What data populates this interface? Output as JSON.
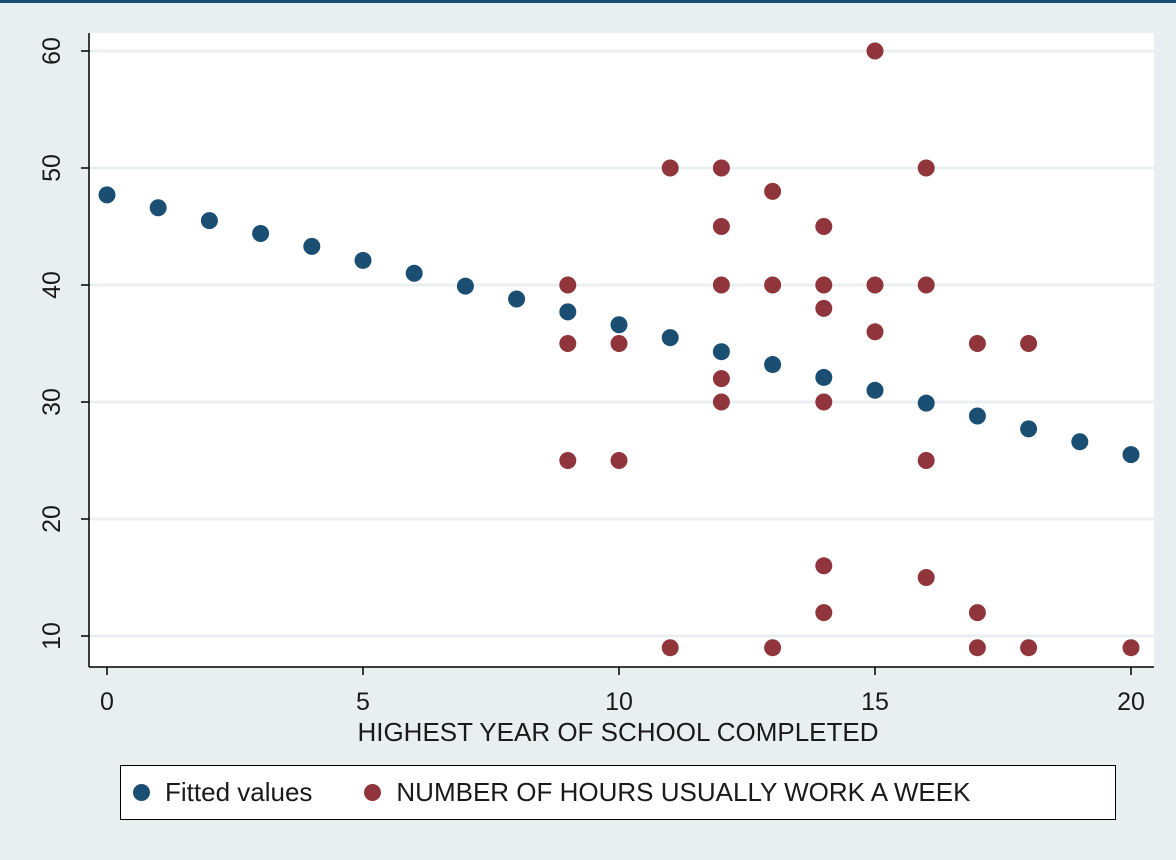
{
  "colors": {
    "background": "#e9eef1",
    "plot_background": "#ffffff",
    "top_rule": "#1a4e72",
    "fitted": "#1a4e72",
    "observed": "#90353b"
  },
  "chart_data": {
    "type": "scatter",
    "xlabel": "HIGHEST YEAR OF SCHOOL COMPLETED",
    "ylabel": "",
    "xlim": [
      0,
      20
    ],
    "ylim": [
      9,
      60
    ],
    "xticks": [
      "0",
      "5",
      "10",
      "15",
      "20"
    ],
    "yticks": [
      "10",
      "20",
      "30",
      "40",
      "50",
      "60"
    ],
    "grid": "horizontal",
    "legend_position": "bottom",
    "series": [
      {
        "name": "Fitted values",
        "color": "#1a4e72",
        "points": [
          [
            0,
            47.7
          ],
          [
            1,
            46.6
          ],
          [
            2,
            45.5
          ],
          [
            3,
            44.4
          ],
          [
            4,
            43.3
          ],
          [
            5,
            42.1
          ],
          [
            6,
            41.0
          ],
          [
            7,
            39.9
          ],
          [
            8,
            38.8
          ],
          [
            9,
            37.7
          ],
          [
            10,
            36.6
          ],
          [
            11,
            35.5
          ],
          [
            12,
            34.3
          ],
          [
            13,
            33.2
          ],
          [
            14,
            32.1
          ],
          [
            15,
            31.0
          ],
          [
            16,
            29.9
          ],
          [
            17,
            28.8
          ],
          [
            18,
            27.7
          ],
          [
            19,
            26.6
          ],
          [
            20,
            25.5
          ]
        ]
      },
      {
        "name": "NUMBER OF HOURS USUALLY WORK A WEEK",
        "color": "#90353b",
        "points": [
          [
            9,
            40
          ],
          [
            9,
            35
          ],
          [
            9,
            25
          ],
          [
            10,
            35
          ],
          [
            10,
            25
          ],
          [
            11,
            50
          ],
          [
            11,
            9
          ],
          [
            12,
            50
          ],
          [
            12,
            45
          ],
          [
            12,
            40
          ],
          [
            12,
            32
          ],
          [
            12,
            30
          ],
          [
            13,
            48
          ],
          [
            13,
            40
          ],
          [
            13,
            9
          ],
          [
            14,
            45
          ],
          [
            14,
            40
          ],
          [
            14,
            38
          ],
          [
            14,
            30
          ],
          [
            14,
            16
          ],
          [
            14,
            12
          ],
          [
            15,
            60
          ],
          [
            15,
            40
          ],
          [
            15,
            36
          ],
          [
            16,
            50
          ],
          [
            16,
            40
          ],
          [
            16,
            25
          ],
          [
            16,
            15
          ],
          [
            17,
            35
          ],
          [
            17,
            12
          ],
          [
            17,
            9
          ],
          [
            18,
            35
          ],
          [
            18,
            9
          ],
          [
            20,
            9
          ]
        ]
      }
    ]
  }
}
